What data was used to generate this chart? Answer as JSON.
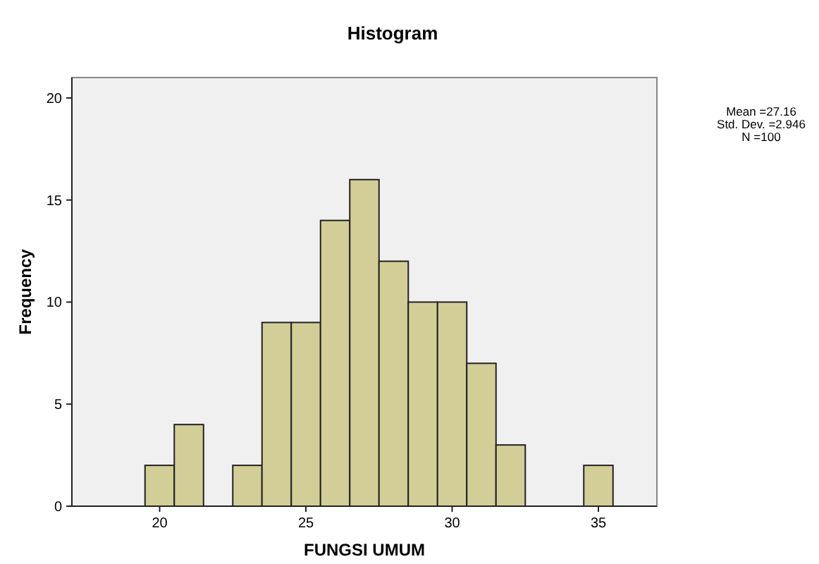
{
  "chart_data": {
    "type": "histogram",
    "title": "Histogram",
    "xlabel": "FUNGSI UMUM",
    "ylabel": "Frequency",
    "bins": [
      19.5,
      20.5,
      21.5,
      22.5,
      23.5,
      24.5,
      25.5,
      26.5,
      27.5,
      28.5,
      29.5,
      30.5,
      31.5,
      32.5,
      33.5,
      34.5,
      35.5
    ],
    "values": [
      2,
      4,
      0,
      2,
      9,
      9,
      14,
      16,
      12,
      10,
      10,
      7,
      3,
      0,
      0,
      2
    ],
    "color": "#d3ce98",
    "xlim": [
      17,
      37
    ],
    "xticks": [
      20,
      25,
      30,
      35
    ],
    "ylim": [
      0,
      21
    ],
    "yticks": [
      0,
      5,
      10,
      15,
      20
    ],
    "grid": false,
    "annotations": [
      "Mean =27.16",
      "Std. Dev. =2.946",
      "N =100"
    ]
  }
}
